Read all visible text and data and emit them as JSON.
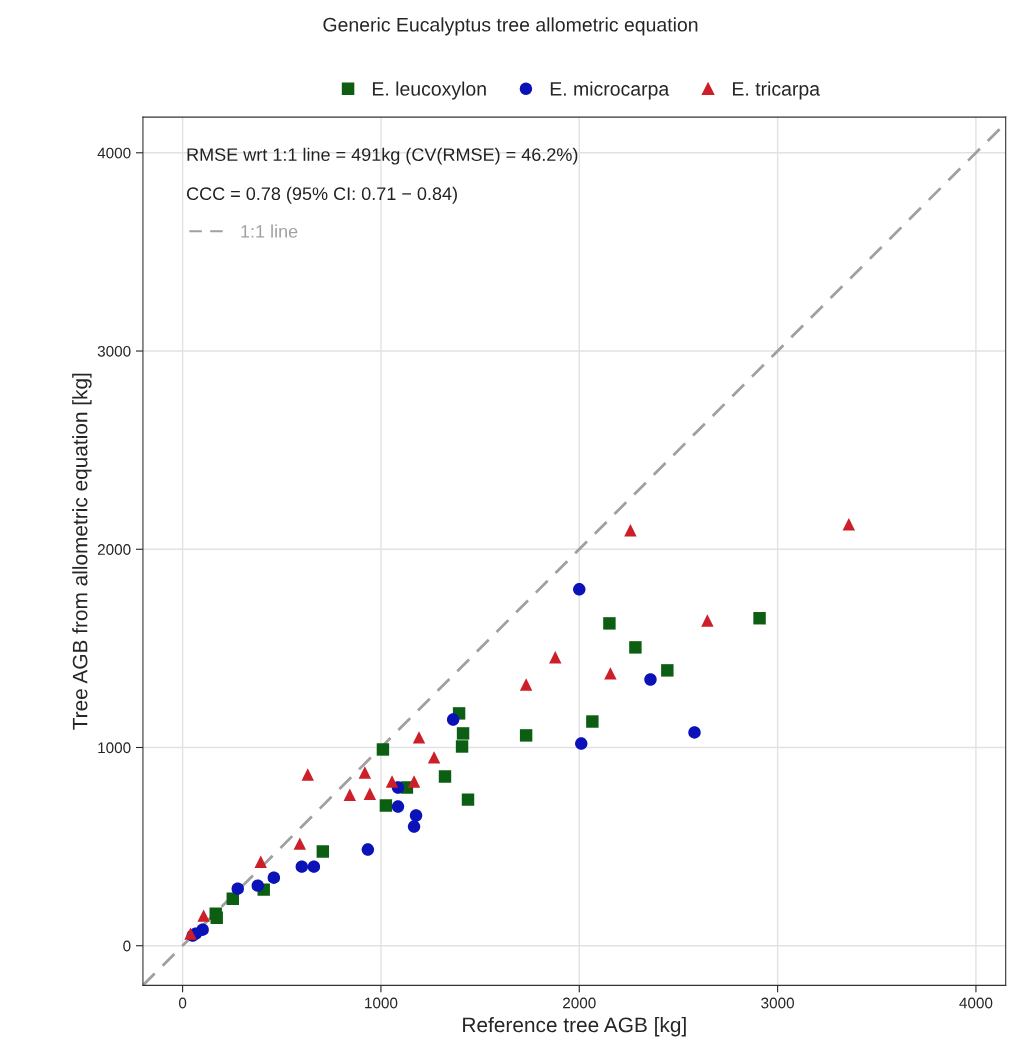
{
  "chart_data": {
    "type": "scatter",
    "title": "Generic Eucalyptus tree allometric equation",
    "xlabel": "Reference tree AGB [kg]",
    "ylabel": "Tree AGB from allometric equation [kg]",
    "xlim": [
      -200,
      4150
    ],
    "ylim": [
      -200,
      4180
    ],
    "xticks": [
      0,
      1000,
      2000,
      3000,
      4000
    ],
    "yticks": [
      0,
      1000,
      2000,
      3000,
      4000
    ],
    "grid": true,
    "legend": "top",
    "annotations": [
      "RMSE wrt 1:1 line = 491kg (CV(RMSE) = 46.2%)",
      "CCC = 0.78 (95% CI: 0.71 − 0.84)"
    ],
    "series": [
      {
        "name": "E. leucoxylon",
        "color": "#0b5e12",
        "marker": "square",
        "x": [
          1394,
          1414,
          1409,
          1010,
          1323,
          1439,
          1025,
          1131,
          707,
          409,
          253,
          167,
          172,
          2152,
          2909,
          2283,
          2444,
          2066,
          1732
        ],
        "values": [
          1172,
          1071,
          1005,
          990,
          854,
          737,
          707,
          798,
          475,
          283,
          237,
          162,
          141,
          1626,
          1652,
          1505,
          1389,
          1131,
          1061
        ]
      },
      {
        "name": "E. microcarpa",
        "color": "#0a12b8",
        "marker": "circle",
        "x": [
          1364,
          1086,
          1086,
          1177,
          1167,
          934,
          601,
          662,
          460,
          278,
          379,
          101,
          66,
          51,
          2000,
          2359,
          2581,
          2010
        ],
        "values": [
          1141,
          798,
          702,
          657,
          601,
          485,
          399,
          399,
          343,
          288,
          303,
          81,
          61,
          51,
          1798,
          1343,
          1076,
          1020
        ]
      },
      {
        "name": "E. tricarpa",
        "color": "#cc1f2a",
        "marker": "triangle",
        "x": [
          1192,
          1268,
          631,
          919,
          843,
          944,
          1056,
          1167,
          591,
          394,
          106,
          40,
          2258,
          3359,
          2646,
          1879,
          2157,
          1732
        ],
        "values": [
          1051,
          950,
          864,
          874,
          762,
          767,
          828,
          828,
          515,
          424,
          152,
          61,
          2096,
          2126,
          1641,
          1455,
          1374,
          1318
        ]
      },
      {
        "name": "1:1 line",
        "type": "line",
        "color": "#a0a0a0",
        "line_style": "dashed",
        "x": [
          -200,
          4150
        ],
        "values": [
          -200,
          4150
        ]
      }
    ]
  }
}
